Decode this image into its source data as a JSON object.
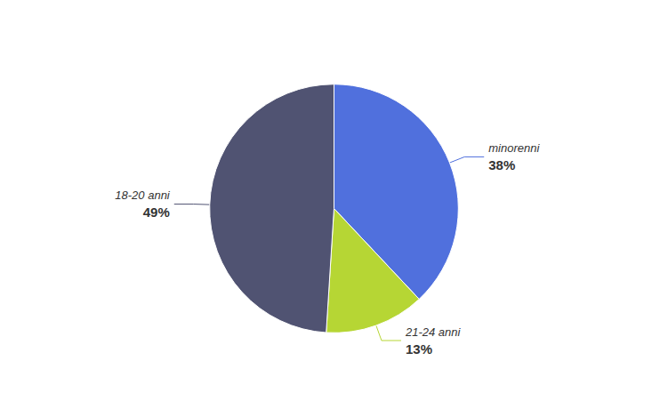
{
  "chart_data": {
    "type": "pie",
    "categories": [
      "minorenni",
      "21-24 anni",
      "18-20 anni"
    ],
    "values": [
      38,
      13,
      49
    ],
    "value_labels": [
      "38%",
      "13%",
      "49%"
    ],
    "data_labels": true
  }
}
